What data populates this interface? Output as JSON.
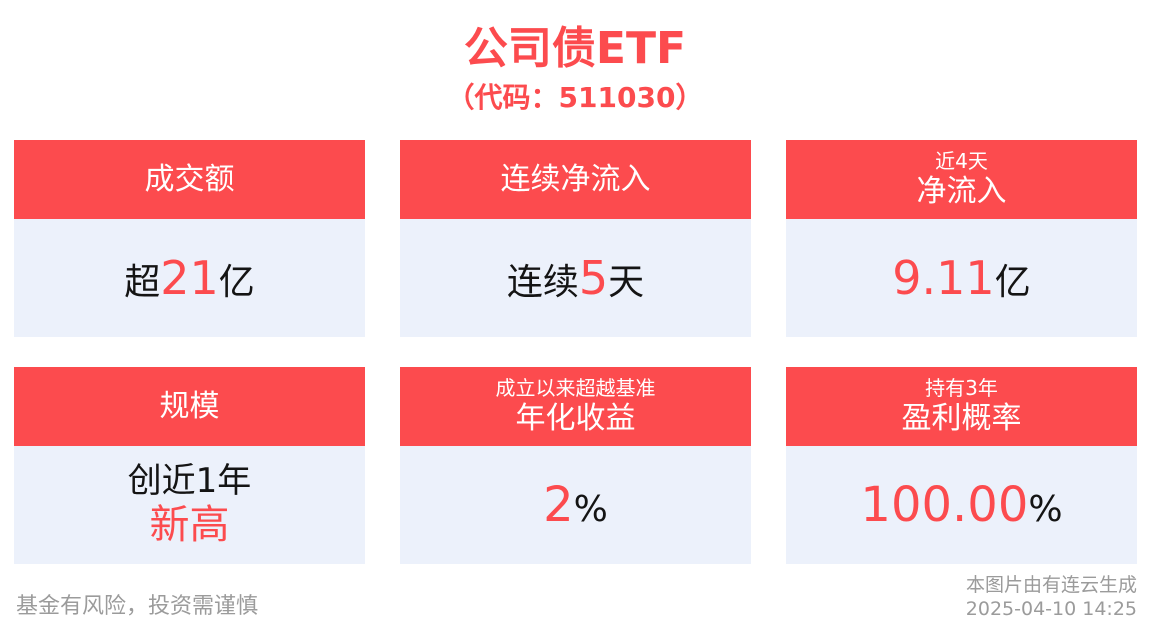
{
  "header": {
    "title": "公司债ETF",
    "subtitle": "（代码：511030）"
  },
  "colors": {
    "accent_red": "#FC4B4E",
    "card_body_bg": "#ECF1FB",
    "value_text_dark": "#141414",
    "footer_gray": "#9B9B9B"
  },
  "cards": [
    {
      "header_main": "成交额",
      "value": {
        "prefix": "超",
        "number": "21",
        "suffix": "亿"
      }
    },
    {
      "header_main": "连续净流入",
      "value": {
        "prefix": "连续",
        "number": "5",
        "suffix": "天"
      }
    },
    {
      "header_small": "近4天",
      "header_main": "净流入",
      "value": {
        "number": "9.11",
        "suffix": "亿"
      }
    },
    {
      "header_main": "规模",
      "value_top": "创近1年",
      "value_bottom": "新高"
    },
    {
      "header_small": "成立以来超越基准",
      "header_main": "年化收益",
      "value": {
        "number": "2",
        "suffix": "%"
      }
    },
    {
      "header_small": "持有3年",
      "header_main": "盈利概率",
      "value": {
        "number": "100.00",
        "suffix": "%"
      }
    }
  ],
  "footer": {
    "disclaimer": "基金有风险，投资需谨慎",
    "generator": "本图片由有连云生成",
    "datetime": "2025-04-10 14:25"
  }
}
